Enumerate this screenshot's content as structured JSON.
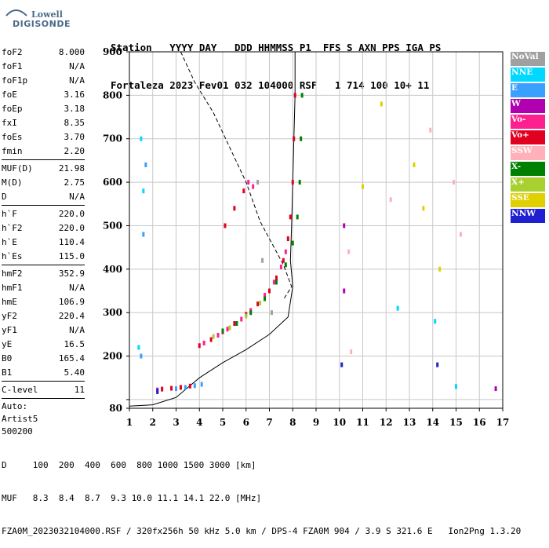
{
  "logo": {
    "line1": "Lowell",
    "line2": "DIGISONDE"
  },
  "header": {
    "line1": "Station   YYYY DAY   DDD HHMMSS P1  FFS S AXN PPS IGA PS",
    "line2": "Fortaleza 2023 Fev01 032 104000 RSF   1 714 100 10+ 11"
  },
  "params": {
    "group1": [
      [
        "foF2",
        "8.000"
      ],
      [
        "foF1",
        "N/A"
      ],
      [
        "foF1p",
        "N/A"
      ],
      [
        "foE",
        "3.16"
      ],
      [
        "foEp",
        "3.18"
      ],
      [
        "fxI",
        "8.35"
      ],
      [
        "foEs",
        "3.70"
      ],
      [
        "fmin",
        "2.20"
      ]
    ],
    "group2": [
      [
        "MUF(D)",
        "21.98"
      ],
      [
        "M(D)",
        "2.75"
      ],
      [
        "D",
        "N/A"
      ]
    ],
    "group3": [
      [
        "h`F",
        "220.0"
      ],
      [
        "h`F2",
        "220.0"
      ],
      [
        "h`E",
        "110.4"
      ],
      [
        "h`Es",
        "115.0"
      ]
    ],
    "group4": [
      [
        "hmF2",
        "352.9"
      ],
      [
        "hmF1",
        "N/A"
      ],
      [
        "hmE",
        "106.9"
      ],
      [
        "yF2",
        "220.4"
      ],
      [
        "yF1",
        "N/A"
      ],
      [
        "yE",
        "16.5"
      ],
      [
        "B0",
        "165.4"
      ],
      [
        "B1",
        "5.40"
      ]
    ],
    "group5": [
      [
        "C-level",
        "11"
      ]
    ],
    "auto_lines": [
      "Auto:",
      "Artist5",
      "500200"
    ]
  },
  "legend": [
    {
      "label": "NoVal",
      "color": "#a0a0a0"
    },
    {
      "label": "NNE",
      "color": "#00d8ff"
    },
    {
      "label": "E",
      "color": "#3aa0ff"
    },
    {
      "label": "W",
      "color": "#b000b0"
    },
    {
      "label": "Vo-",
      "color": "#ff2090"
    },
    {
      "label": "Vo+",
      "color": "#e00020"
    },
    {
      "label": "SSW",
      "color": "#ffb0b8"
    },
    {
      "label": "X-",
      "color": "#008000"
    },
    {
      "label": "X+",
      "color": "#a8d030"
    },
    {
      "label": "SSE",
      "color": "#e0d000"
    },
    {
      "label": "NNW",
      "color": "#2020d0"
    }
  ],
  "footer": {
    "line1": "D     100  200  400  600  800 1000 1500 3000 [km]",
    "line2": "MUF   8.3  8.4  8.7  9.3 10.0 11.1 14.1 22.0 [MHz]",
    "line3": "FZA0M_2023032104000.RSF / 320fx256h 50 kHz 5.0 km / DPS-4 FZA0M 904 / 3.9 S 321.6 E   Ion2Png 1.3.20"
  },
  "chart_data": {
    "type": "scatter",
    "title": "",
    "xlabel": "",
    "ylabel": "",
    "xlim": [
      1,
      17
    ],
    "ylim": [
      80,
      900
    ],
    "x_ticks": [
      1,
      2,
      3,
      4,
      5,
      6,
      7,
      8,
      9,
      10,
      11,
      12,
      13,
      14,
      15,
      16,
      17
    ],
    "y_ticks": [
      80,
      100,
      200,
      300,
      400,
      500,
      600,
      700,
      800,
      900
    ],
    "y_tick_labels": [
      "80",
      "",
      "200",
      "300",
      "400",
      "500",
      "600",
      "700",
      "800",
      "900"
    ],
    "grid": true,
    "series": [
      {
        "name": "Vo+",
        "color": "#e00020",
        "points": [
          [
            2.4,
            124
          ],
          [
            2.8,
            126
          ],
          [
            3.2,
            128
          ],
          [
            3.6,
            131
          ],
          [
            4.0,
            224
          ],
          [
            4.5,
            238
          ],
          [
            5.0,
            256
          ],
          [
            5.5,
            275
          ],
          [
            6.0,
            296
          ],
          [
            6.5,
            320
          ],
          [
            7.0,
            350
          ],
          [
            7.3,
            380
          ],
          [
            7.6,
            420
          ],
          [
            7.8,
            470
          ],
          [
            7.9,
            520
          ],
          [
            8.0,
            600
          ],
          [
            8.05,
            700
          ],
          [
            8.1,
            800
          ],
          [
            5.1,
            500
          ],
          [
            5.5,
            540
          ],
          [
            5.9,
            580
          ]
        ]
      },
      {
        "name": "Vo-",
        "color": "#ff2090",
        "points": [
          [
            4.2,
            230
          ],
          [
            4.8,
            248
          ],
          [
            5.2,
            262
          ],
          [
            5.8,
            285
          ],
          [
            6.2,
            305
          ],
          [
            6.8,
            340
          ],
          [
            7.2,
            370
          ],
          [
            7.5,
            405
          ],
          [
            7.7,
            440
          ],
          [
            6.1,
            600
          ],
          [
            6.3,
            590
          ]
        ]
      },
      {
        "name": "X-",
        "color": "#008000",
        "points": [
          [
            5.0,
            258
          ],
          [
            5.6,
            275
          ],
          [
            6.2,
            300
          ],
          [
            6.8,
            332
          ],
          [
            7.3,
            370
          ],
          [
            7.7,
            410
          ],
          [
            8.0,
            460
          ],
          [
            8.2,
            520
          ],
          [
            8.3,
            600
          ],
          [
            8.35,
            700
          ],
          [
            8.4,
            800
          ]
        ]
      },
      {
        "name": "X+",
        "color": "#a8d030",
        "points": [
          [
            4.6,
            245
          ],
          [
            5.3,
            265
          ],
          [
            6.0,
            292
          ],
          [
            6.6,
            322
          ]
        ]
      },
      {
        "name": "E",
        "color": "#3aa0ff",
        "points": [
          [
            3.0,
            125
          ],
          [
            3.4,
            128
          ],
          [
            3.8,
            132
          ],
          [
            4.1,
            135
          ],
          [
            1.6,
            480
          ],
          [
            1.5,
            200
          ],
          [
            1.7,
            640
          ]
        ]
      },
      {
        "name": "NNE",
        "color": "#00d8ff",
        "points": [
          [
            1.5,
            700
          ],
          [
            1.6,
            580
          ],
          [
            1.4,
            220
          ],
          [
            15.0,
            130
          ],
          [
            14.1,
            280
          ],
          [
            12.5,
            310
          ]
        ]
      },
      {
        "name": "W",
        "color": "#b000b0",
        "points": [
          [
            2.2,
            122
          ],
          [
            10.2,
            500
          ],
          [
            10.2,
            350
          ],
          [
            16.7,
            125
          ]
        ]
      },
      {
        "name": "SSE",
        "color": "#e0d000",
        "points": [
          [
            11.8,
            780
          ],
          [
            13.2,
            640
          ],
          [
            11.0,
            590
          ],
          [
            13.6,
            540
          ],
          [
            14.3,
            400
          ]
        ]
      },
      {
        "name": "SSW",
        "color": "#ffb0b8",
        "points": [
          [
            13.9,
            720
          ],
          [
            14.9,
            600
          ],
          [
            15.2,
            480
          ],
          [
            12.2,
            560
          ],
          [
            10.4,
            440
          ],
          [
            10.5,
            210
          ]
        ]
      },
      {
        "name": "NNW",
        "color": "#2020d0",
        "points": [
          [
            2.2,
            118
          ],
          [
            10.1,
            180
          ],
          [
            14.2,
            180
          ]
        ]
      },
      {
        "name": "NoVal",
        "color": "#a0a0a0",
        "points": [
          [
            6.5,
            600
          ],
          [
            6.7,
            420
          ],
          [
            7.1,
            300
          ]
        ]
      }
    ],
    "curves": [
      {
        "style": "solid",
        "points": [
          [
            1.0,
            85
          ],
          [
            2.0,
            88
          ],
          [
            3.0,
            105
          ],
          [
            4.0,
            150
          ],
          [
            5.0,
            185
          ],
          [
            6.0,
            215
          ],
          [
            7.0,
            250
          ],
          [
            7.8,
            290
          ],
          [
            8.0,
            360
          ],
          [
            7.9,
            420
          ],
          [
            7.95,
            500
          ],
          [
            8.0,
            600
          ],
          [
            8.05,
            700
          ],
          [
            8.1,
            800
          ],
          [
            8.1,
            900
          ]
        ]
      },
      {
        "style": "dashed",
        "points": [
          [
            3.2,
            900
          ],
          [
            3.8,
            830
          ],
          [
            4.6,
            760
          ],
          [
            5.3,
            680
          ],
          [
            6.0,
            600
          ],
          [
            6.6,
            510
          ],
          [
            7.1,
            460
          ],
          [
            7.6,
            410
          ],
          [
            7.95,
            360
          ],
          [
            7.6,
            330
          ]
        ]
      }
    ]
  }
}
